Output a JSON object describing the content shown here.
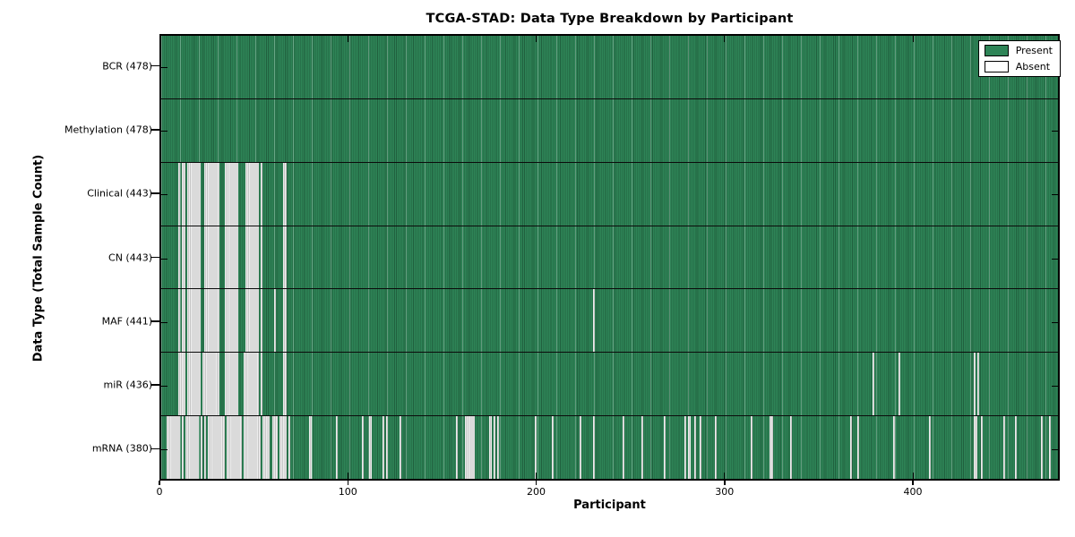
{
  "chart_data": {
    "type": "heatmap",
    "title": "TCGA-STAD: Data Type Breakdown by Participant",
    "xlabel": "Participant",
    "ylabel": "Data Type (Total Sample Count)",
    "n_participants": 478,
    "xlim": [
      0,
      478
    ],
    "x_ticks": [
      0,
      100,
      200,
      300,
      400
    ],
    "grid": false,
    "legend": {
      "position": "upper right",
      "entries": [
        {
          "label": "Present",
          "color": "#2e8457"
        },
        {
          "label": "Absent",
          "color": "#ffffff"
        }
      ]
    },
    "colors": {
      "present": "#2e8457",
      "present_edge": "#20603e",
      "absent": "#ededed",
      "absent_edge": "#c6c6c6",
      "separator": "#0b0b0b"
    },
    "rows": [
      {
        "id": "bcr",
        "label": "BCR (478)",
        "total": 478,
        "absent_runs": []
      },
      {
        "id": "methylation",
        "label": "Methylation (478)",
        "total": 478,
        "absent_runs": []
      },
      {
        "id": "clinical",
        "label": "Clinical (443)",
        "total": 443,
        "absent_runs": [
          [
            9,
            9
          ],
          [
            11,
            12
          ],
          [
            14,
            20
          ],
          [
            23,
            30
          ],
          [
            34,
            40
          ],
          [
            45,
            51
          ],
          [
            53,
            53
          ],
          [
            65,
            66
          ]
        ]
      },
      {
        "id": "cn",
        "label": "CN (443)",
        "total": 443,
        "absent_runs": [
          [
            9,
            9
          ],
          [
            11,
            12
          ],
          [
            14,
            20
          ],
          [
            23,
            30
          ],
          [
            34,
            40
          ],
          [
            45,
            51
          ],
          [
            53,
            53
          ],
          [
            65,
            66
          ]
        ]
      },
      {
        "id": "maf",
        "label": "MAF (441)",
        "total": 441,
        "absent_runs": [
          [
            9,
            9
          ],
          [
            11,
            12
          ],
          [
            14,
            20
          ],
          [
            23,
            30
          ],
          [
            34,
            40
          ],
          [
            45,
            51
          ],
          [
            53,
            53
          ],
          [
            60,
            60
          ],
          [
            65,
            66
          ],
          [
            230,
            230
          ]
        ]
      },
      {
        "id": "mir",
        "label": "miR (436)",
        "total": 436,
        "absent_runs": [
          [
            9,
            12
          ],
          [
            14,
            20
          ],
          [
            22,
            30
          ],
          [
            34,
            40
          ],
          [
            44,
            51
          ],
          [
            53,
            53
          ],
          [
            65,
            66
          ],
          [
            379,
            379
          ],
          [
            393,
            393
          ],
          [
            433,
            433
          ],
          [
            435,
            435
          ]
        ]
      },
      {
        "id": "mrna",
        "label": "mRNA (380)",
        "total": 380,
        "absent_runs": [
          [
            3,
            9
          ],
          [
            11,
            11
          ],
          [
            13,
            19
          ],
          [
            21,
            21
          ],
          [
            23,
            23
          ],
          [
            25,
            33
          ],
          [
            35,
            42
          ],
          [
            44,
            52
          ],
          [
            54,
            57
          ],
          [
            59,
            61
          ],
          [
            63,
            66
          ],
          [
            68,
            68
          ],
          [
            79,
            79
          ],
          [
            93,
            93
          ],
          [
            107,
            107
          ],
          [
            111,
            111
          ],
          [
            118,
            118
          ],
          [
            120,
            120
          ],
          [
            127,
            127
          ],
          [
            157,
            157
          ],
          [
            162,
            166
          ],
          [
            175,
            175
          ],
          [
            177,
            177
          ],
          [
            179,
            179
          ],
          [
            199,
            199
          ],
          [
            208,
            208
          ],
          [
            223,
            223
          ],
          [
            230,
            230
          ],
          [
            246,
            246
          ],
          [
            256,
            256
          ],
          [
            268,
            268
          ],
          [
            279,
            279
          ],
          [
            281,
            281
          ],
          [
            284,
            284
          ],
          [
            287,
            287
          ],
          [
            295,
            295
          ],
          [
            314,
            314
          ],
          [
            324,
            325
          ],
          [
            335,
            335
          ],
          [
            367,
            367
          ],
          [
            371,
            371
          ],
          [
            390,
            390
          ],
          [
            409,
            409
          ],
          [
            433,
            434
          ],
          [
            437,
            437
          ],
          [
            449,
            449
          ],
          [
            455,
            455
          ],
          [
            469,
            469
          ],
          [
            473,
            473
          ]
        ]
      }
    ]
  }
}
